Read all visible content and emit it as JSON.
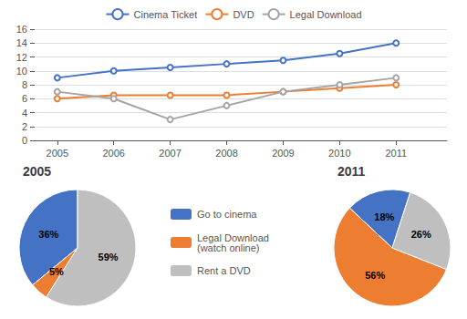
{
  "chart_data": [
    {
      "type": "line",
      "x": [
        2005,
        2006,
        2007,
        2008,
        2009,
        2010,
        2011
      ],
      "series": [
        {
          "name": "Cinema Ticket",
          "color": "#4472c4",
          "values": [
            9,
            10,
            10.5,
            11,
            11.5,
            12.5,
            14
          ]
        },
        {
          "name": "DVD",
          "color": "#ed7d31",
          "values": [
            6,
            6.5,
            6.5,
            6.5,
            7,
            7.5,
            8
          ]
        },
        {
          "name": "Legal Download",
          "color": "#a5a5a5",
          "values": [
            7,
            6,
            3,
            5,
            7,
            8,
            9
          ]
        }
      ],
      "xlim": [
        2004.6,
        2011.9
      ],
      "xticks": [
        2005,
        2006,
        2007,
        2008,
        2009,
        2010,
        2011
      ],
      "ylim": [
        0,
        16
      ],
      "yticks": [
        0,
        2,
        4,
        6,
        8,
        10,
        12,
        14,
        16
      ],
      "grid": true,
      "legend": "top"
    },
    {
      "type": "pie",
      "title": "2005",
      "categories": [
        "Go to cinema",
        "Legal Download\n(watch online)",
        "Rent a DVD"
      ],
      "values": [
        36,
        5,
        59
      ],
      "value_labels": [
        "36%",
        "5%",
        "59%"
      ],
      "colors": [
        "#4472c4",
        "#ed7d31",
        "#bfbfbf"
      ],
      "data_labels": true,
      "legend": "right"
    },
    {
      "type": "pie",
      "title": "2011",
      "categories": [
        "Go to cinema",
        "Legal Download\n(watch online)",
        "Rent a DVD"
      ],
      "values": [
        18,
        56,
        26
      ],
      "value_labels": [
        "18%",
        "56%",
        "26%"
      ],
      "colors": [
        "#4472c4",
        "#ed7d31",
        "#bfbfbf"
      ],
      "data_labels": true
    }
  ]
}
